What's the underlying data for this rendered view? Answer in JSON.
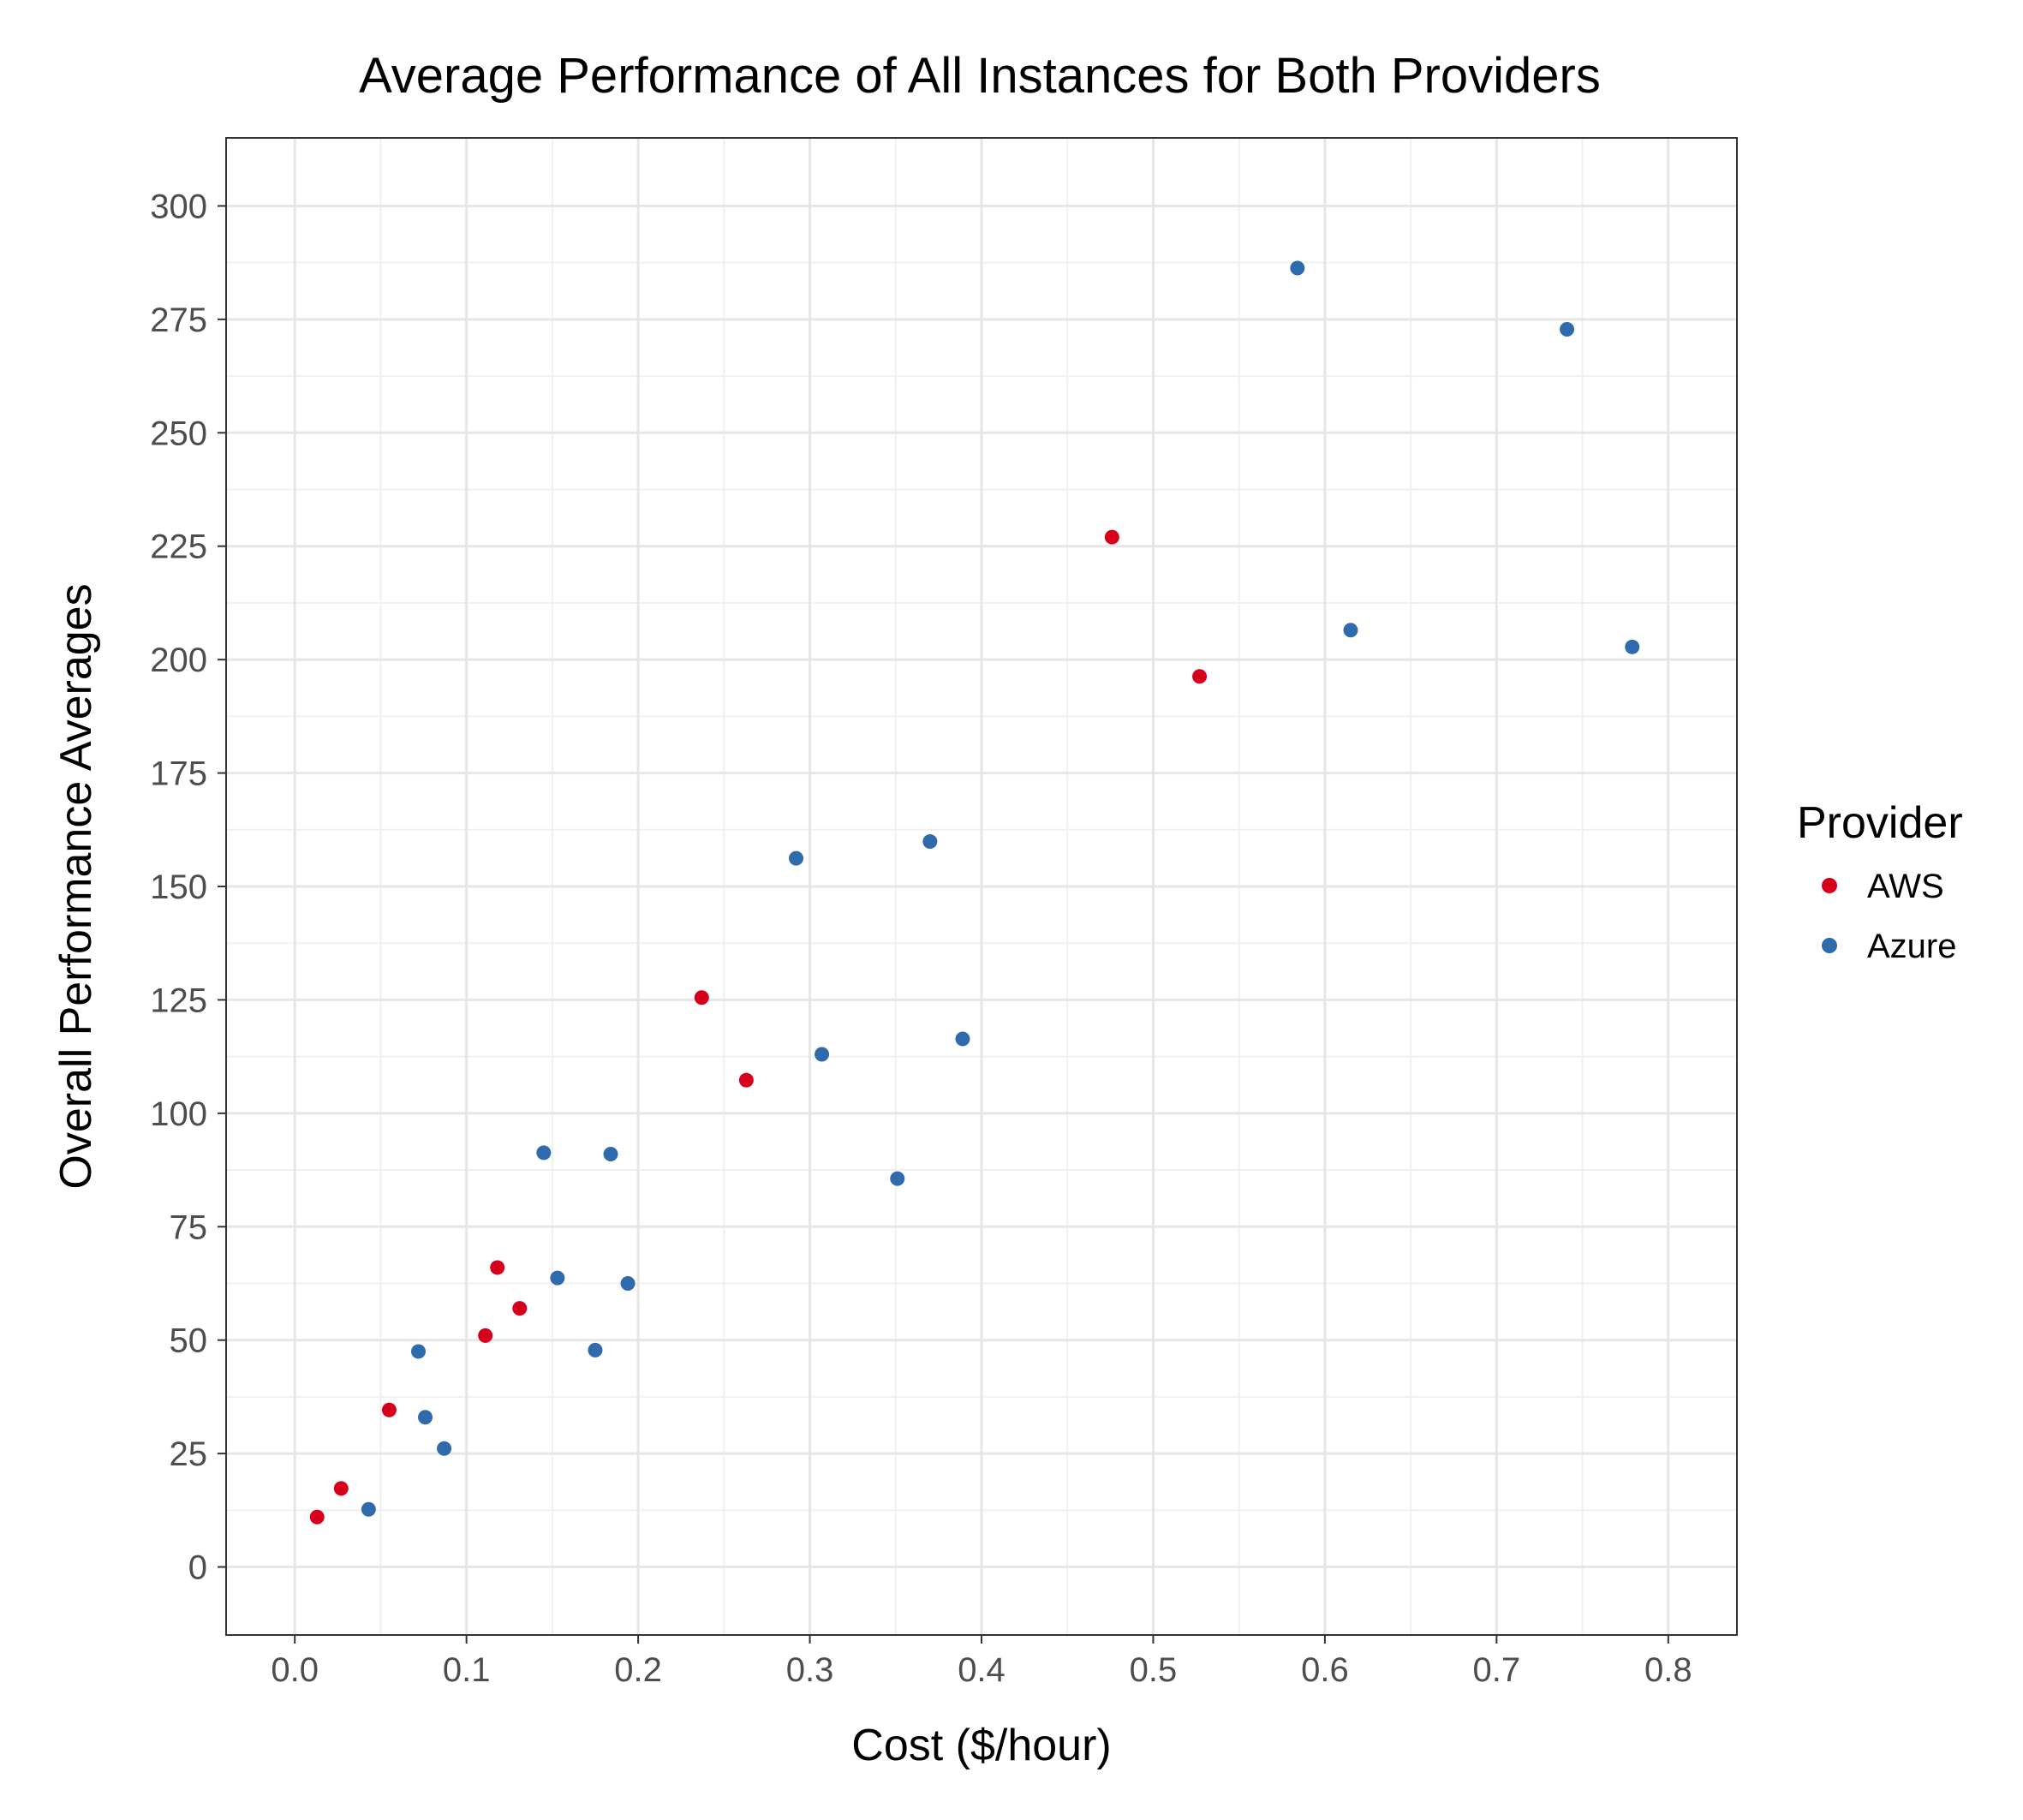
{
  "chart_data": {
    "type": "scatter",
    "title": "Average Performance of All Instances for Both Providers",
    "xlabel": "Cost ($/hour)",
    "ylabel": "Overall Performance Averages",
    "xlim": [
      -0.04,
      0.84
    ],
    "ylim": [
      -15,
      315
    ],
    "x_ticks": [
      0.0,
      0.1,
      0.2,
      0.3,
      0.4,
      0.5,
      0.6,
      0.7,
      0.8
    ],
    "x_tick_labels": [
      "0.0",
      "0.1",
      "0.2",
      "0.3",
      "0.4",
      "0.5",
      "0.6",
      "0.7",
      "0.8"
    ],
    "y_ticks": [
      0,
      25,
      50,
      75,
      100,
      125,
      150,
      175,
      200,
      225,
      250,
      275,
      300
    ],
    "y_tick_labels": [
      "0",
      "25",
      "50",
      "75",
      "100",
      "125",
      "150",
      "175",
      "200",
      "225",
      "250",
      "275",
      "300"
    ],
    "grid": true,
    "legend": {
      "title": "Provider",
      "position": "right"
    },
    "series": [
      {
        "name": "AWS",
        "color": "#d7001c",
        "points": [
          [
            0.013,
            11
          ],
          [
            0.027,
            17.3
          ],
          [
            0.055,
            34.6
          ],
          [
            0.111,
            51
          ],
          [
            0.118,
            66
          ],
          [
            0.131,
            57
          ],
          [
            0.237,
            125.5
          ],
          [
            0.263,
            107.3
          ],
          [
            0.476,
            227
          ],
          [
            0.527,
            196.3
          ]
        ]
      },
      {
        "name": "Azure",
        "color": "#2f6aad",
        "points": [
          [
            0.043,
            12.7
          ],
          [
            0.072,
            47.5
          ],
          [
            0.076,
            33
          ],
          [
            0.087,
            26.1
          ],
          [
            0.145,
            91.3
          ],
          [
            0.153,
            63.7
          ],
          [
            0.175,
            47.8
          ],
          [
            0.184,
            91
          ],
          [
            0.194,
            62.5
          ],
          [
            0.292,
            156.2
          ],
          [
            0.307,
            113
          ],
          [
            0.351,
            85.6
          ],
          [
            0.37,
            159.9
          ],
          [
            0.389,
            116.4
          ],
          [
            0.584,
            286.3
          ],
          [
            0.615,
            206.5
          ],
          [
            0.741,
            272.8
          ],
          [
            0.779,
            202.8
          ]
        ]
      }
    ]
  }
}
